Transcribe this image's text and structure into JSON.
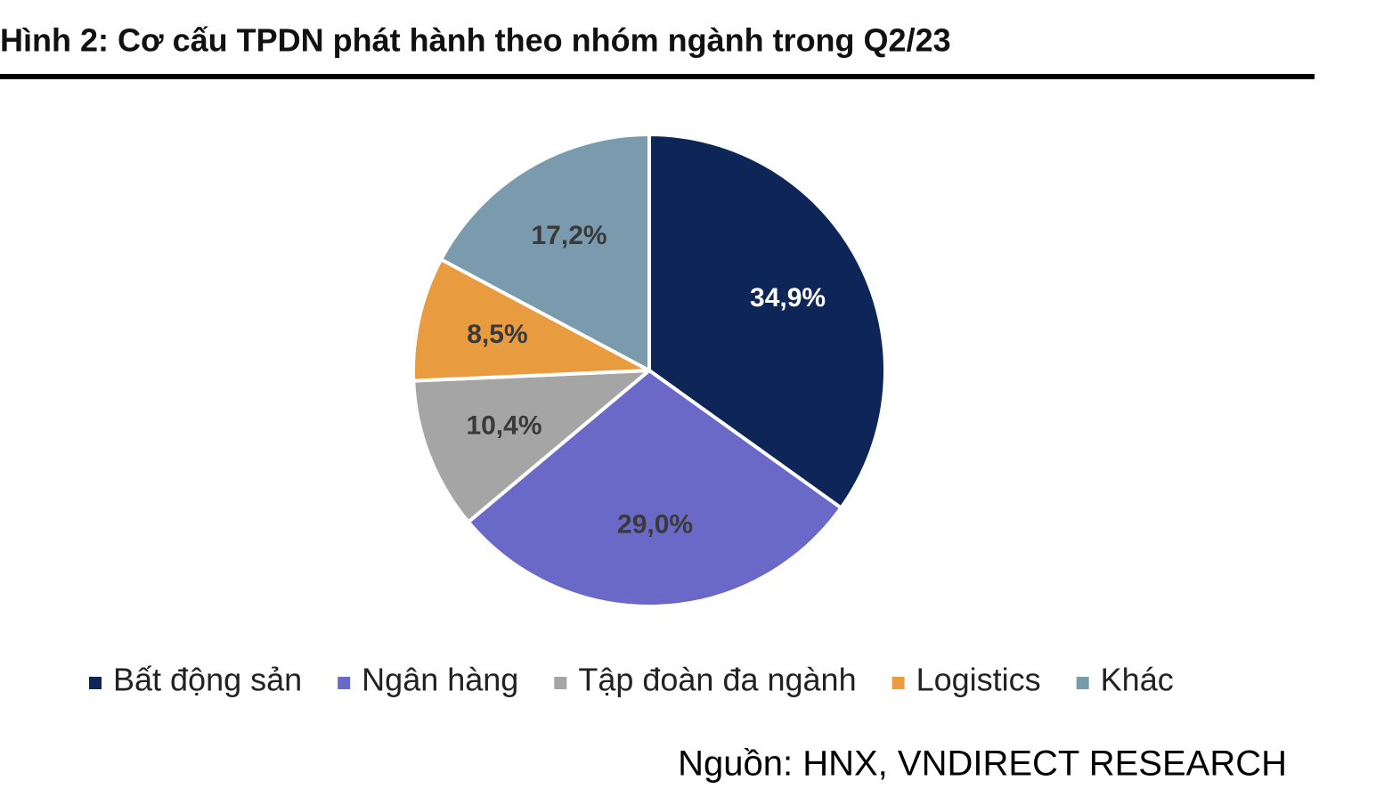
{
  "chart_data": {
    "type": "pie",
    "title": "Hình 2: Cơ cấu TPDN phát hành theo nhóm ngành trong Q2/23",
    "categories": [
      "Bất động sản",
      "Ngân hàng",
      "Tập đoàn đa ngành",
      "Logistics",
      "Khác"
    ],
    "values": [
      34.9,
      29.0,
      10.4,
      8.5,
      17.2
    ],
    "value_labels": [
      "34,9%",
      "29,0%",
      "10,4%",
      "8,5%",
      "17,2%"
    ],
    "colors": [
      "#0e2657",
      "#6a69c8",
      "#a5a5a5",
      "#e99c3f",
      "#7a9aae"
    ],
    "legend": "bottom",
    "source": "Nguồn: HNX, VNDIRECT RESEARCH"
  }
}
